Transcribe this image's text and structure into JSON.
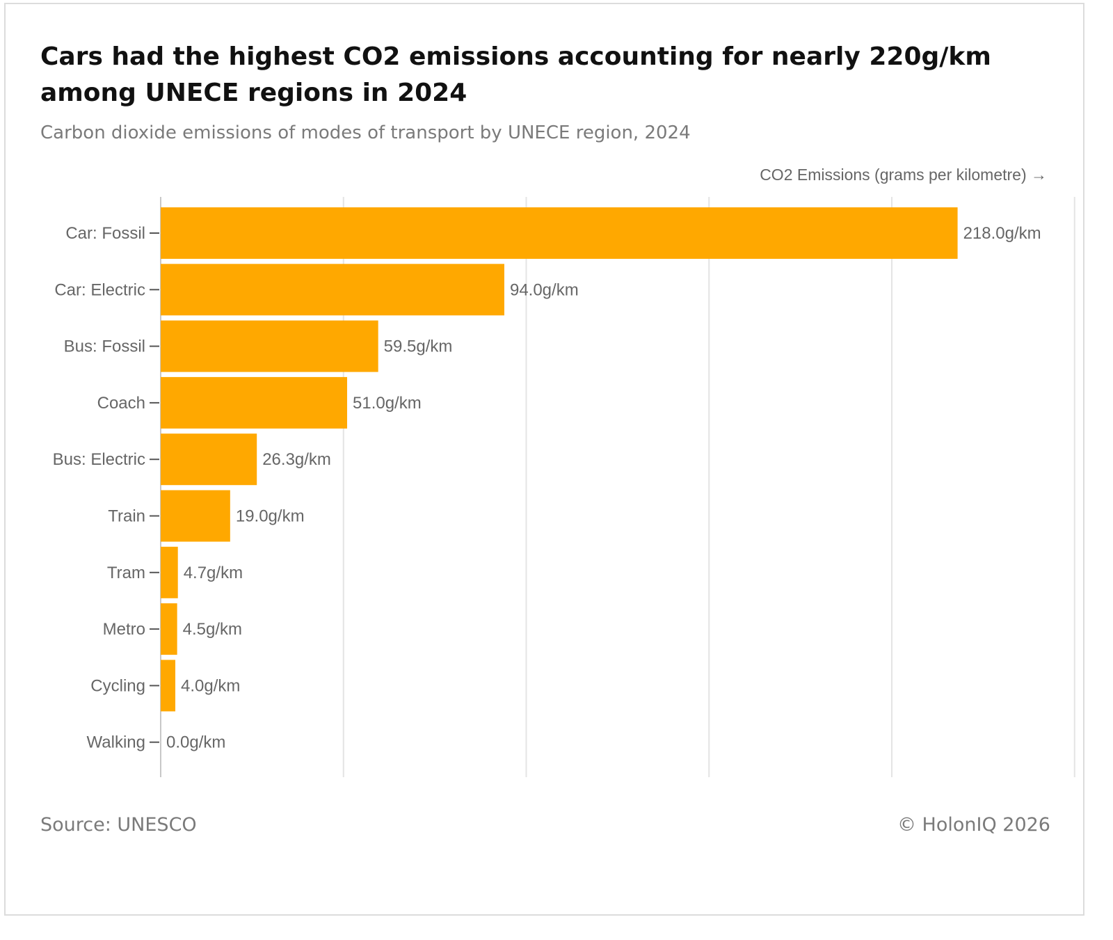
{
  "title": "Cars had the highest CO2 emissions accounting for nearly 220g/km among UNECE regions in 2024",
  "subtitle": "Carbon dioxide emissions of modes of transport by UNECE region, 2024",
  "footer": {
    "source": "Source: UNESCO",
    "copyright": "© HolonIQ 2026"
  },
  "colors": {
    "bar": "#FFA800",
    "grid": "#e4e4e4",
    "text": "#666666",
    "title": "#111111"
  },
  "chart_data": {
    "type": "bar",
    "orientation": "horizontal",
    "title": "Cars had the highest CO2 emissions accounting for nearly 220g/km among UNECE regions in 2024",
    "xlabel": "CO2 Emissions (grams per kilometre) →",
    "ylabel": "",
    "xlim": [
      0,
      250
    ],
    "grid": true,
    "value_suffix": "g/km",
    "categories": [
      "Car: Fossil",
      "Car: Electric",
      "Bus: Fossil",
      "Coach",
      "Bus: Electric",
      "Train",
      "Tram",
      "Metro",
      "Cycling",
      "Walking"
    ],
    "values": [
      218.0,
      94.0,
      59.5,
      51.0,
      26.3,
      19.0,
      4.7,
      4.5,
      4.0,
      0.0
    ],
    "value_labels": [
      "218.0g/km",
      "94.0g/km",
      "59.5g/km",
      "51.0g/km",
      "26.3g/km",
      "19.0g/km",
      "4.7g/km",
      "4.5g/km",
      "4.0g/km",
      "0.0g/km"
    ]
  }
}
